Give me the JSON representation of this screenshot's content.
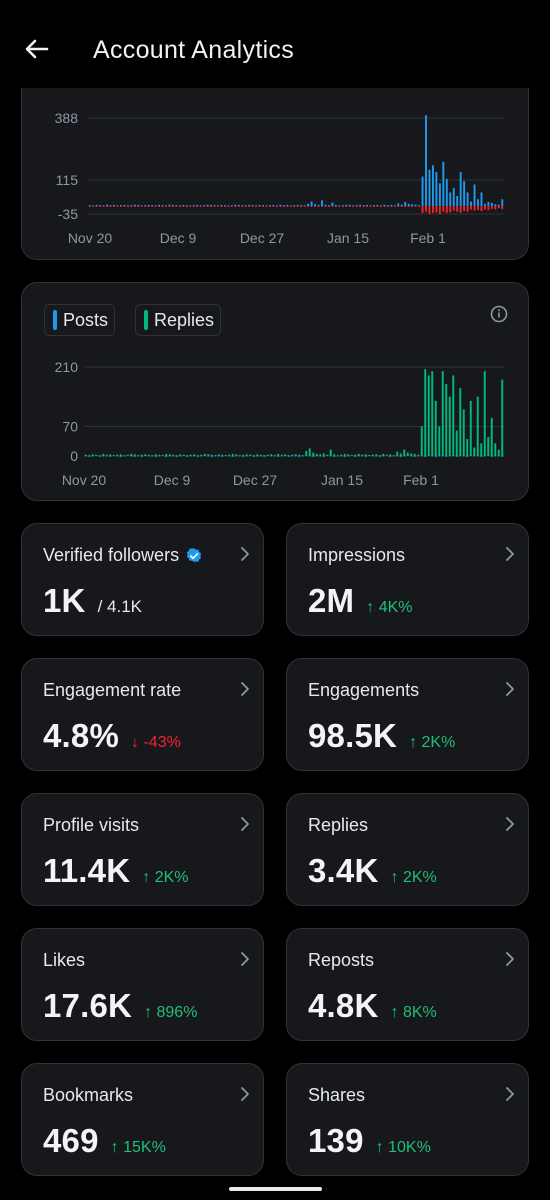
{
  "header": {
    "title": "Account Analytics",
    "back_icon": "arrow-left-icon"
  },
  "colors": {
    "posts": "#1d9bf0",
    "replies": "#00ba7c",
    "negative": "#f4212e",
    "up": "#1fbf78",
    "down": "#f4212e",
    "card_bg": "#16181c",
    "border": "#2f3336"
  },
  "chart_top": {
    "chart_data": {
      "type": "bar",
      "y_ticks": [
        "388",
        "115",
        "-35"
      ],
      "ylim": [
        -35,
        388
      ],
      "x_ticks": [
        "Nov 20",
        "Dec 9",
        "Dec 27",
        "Jan 15",
        "Feb 1"
      ],
      "series": [
        {
          "values": [
            4,
            3,
            5,
            4,
            3,
            6,
            4,
            5,
            3,
            4,
            5,
            3,
            4,
            6,
            5,
            3,
            4,
            5,
            4,
            3,
            5,
            4,
            3,
            6,
            5,
            4,
            3,
            5,
            4,
            3,
            4,
            5,
            3,
            4,
            6,
            5,
            4,
            3,
            5,
            4,
            3,
            4,
            6,
            5,
            3,
            4,
            5,
            4,
            3,
            5,
            4,
            3,
            4,
            5,
            3,
            6,
            4,
            5,
            3,
            4,
            5,
            4,
            3,
            10,
            20,
            8,
            5,
            25,
            6,
            4,
            15,
            5,
            3,
            4,
            6,
            5,
            3,
            4,
            6,
            4,
            5,
            3,
            4,
            5,
            3,
            6,
            4,
            5,
            3,
            12,
            6,
            18,
            10,
            8,
            6,
            4,
            130,
            400,
            160,
            180,
            150,
            100,
            195,
            120,
            60,
            80,
            45,
            150,
            110,
            60,
            20,
            95,
            30,
            60,
            10,
            18,
            14,
            8,
            6,
            30
          ]
        },
        {
          "values": [
            -2,
            -1,
            -2,
            -3,
            -1,
            -2,
            -1,
            -2,
            -3,
            -1,
            -2,
            -1,
            -2,
            -3,
            -1,
            -2,
            -1,
            -2,
            -3,
            -1,
            -2,
            -1,
            -2,
            -3,
            -1,
            -2,
            -1,
            -2,
            -3,
            -1,
            -2,
            -1,
            -2,
            -3,
            -1,
            -2,
            -1,
            -2,
            -3,
            -1,
            -2,
            -1,
            -2,
            -3,
            -1,
            -2,
            -1,
            -2,
            -3,
            -1,
            -2,
            -1,
            -2,
            -3,
            -1,
            -2,
            -1,
            -2,
            -3,
            -1,
            -2,
            -1,
            -2,
            -3,
            -1,
            -2,
            -3,
            -1,
            -2,
            -3,
            -1,
            -2,
            -1,
            -3,
            -2,
            -1,
            -2,
            -3,
            -1,
            -2,
            -1,
            -2,
            -3,
            -1,
            -2,
            -1,
            -2,
            -3,
            -1,
            -2,
            -3,
            -4,
            -3,
            -2,
            -3,
            -2,
            -30,
            -25,
            -35,
            -30,
            -28,
            -35,
            -25,
            -30,
            -28,
            -20,
            -25,
            -30,
            -22,
            -25,
            -15,
            -20,
            -18,
            -22,
            -15,
            -18,
            -12,
            -15,
            -10,
            -14
          ]
        }
      ]
    }
  },
  "chart_bottom": {
    "legend": [
      {
        "label": "Posts"
      },
      {
        "label": "Replies"
      }
    ],
    "info_icon": "info-icon",
    "chart_data": {
      "type": "bar",
      "y_ticks": [
        "210",
        "70",
        "0"
      ],
      "ylim": [
        0,
        210
      ],
      "x_ticks": [
        "Nov 20",
        "Dec 9",
        "Dec 27",
        "Jan 15",
        "Feb 1"
      ],
      "series": [
        {
          "name": "Posts",
          "values": [
            1,
            0,
            1,
            2,
            0,
            1,
            1,
            0,
            2,
            1,
            0,
            1,
            2,
            1,
            0,
            1,
            0,
            2,
            1,
            1,
            0,
            1,
            2,
            0,
            1,
            1,
            0,
            1,
            2,
            0,
            1,
            1,
            0,
            1,
            2,
            1,
            0,
            1,
            1,
            0,
            2,
            1,
            0,
            1,
            1,
            0,
            1,
            2,
            0,
            1,
            1,
            0,
            2,
            1,
            1,
            0,
            1,
            2,
            0,
            1,
            1,
            0,
            1,
            2,
            1,
            0,
            1,
            1,
            0,
            2,
            1,
            0,
            1,
            1,
            0,
            1,
            2,
            0,
            1,
            1,
            0,
            2,
            1,
            1,
            0,
            1,
            2,
            0,
            1,
            1,
            0,
            1,
            2,
            1,
            0,
            1,
            1,
            0,
            2,
            1,
            0,
            1,
            1,
            0,
            1,
            2,
            0,
            1,
            1,
            0,
            2,
            1,
            1,
            0,
            1,
            2,
            0,
            1,
            1,
            0
          ]
        },
        {
          "name": "Replies",
          "values": [
            3,
            2,
            4,
            3,
            2,
            5,
            3,
            4,
            2,
            3,
            4,
            2,
            3,
            5,
            4,
            2,
            3,
            4,
            3,
            2,
            4,
            3,
            2,
            5,
            4,
            3,
            2,
            4,
            3,
            2,
            3,
            4,
            2,
            3,
            5,
            4,
            3,
            2,
            4,
            3,
            2,
            3,
            5,
            4,
            2,
            3,
            4,
            3,
            2,
            4,
            3,
            2,
            3,
            4,
            2,
            5,
            3,
            4,
            2,
            3,
            4,
            3,
            2,
            12,
            18,
            8,
            5,
            4,
            6,
            3,
            15,
            4,
            2,
            3,
            5,
            4,
            2,
            3,
            5,
            3,
            4,
            2,
            3,
            4,
            2,
            5,
            3,
            4,
            2,
            10,
            6,
            15,
            8,
            6,
            5,
            3,
            70,
            205,
            190,
            200,
            130,
            70,
            200,
            170,
            140,
            190,
            60,
            160,
            110,
            40,
            130,
            20,
            140,
            30,
            200,
            45,
            90,
            30,
            15,
            180
          ]
        }
      ]
    }
  },
  "stats": [
    {
      "label": "Verified followers",
      "value": "1K",
      "sub": "/ 4.1K",
      "change": "",
      "dir": "",
      "verified": true
    },
    {
      "label": "Impressions",
      "value": "2M",
      "sub": "",
      "change": "↑ 4K%",
      "dir": "up"
    },
    {
      "label": "Engagement rate",
      "value": "4.8%",
      "sub": "",
      "change": "↓ -43%",
      "dir": "down"
    },
    {
      "label": "Engagements",
      "value": "98.5K",
      "sub": "",
      "change": "↑ 2K%",
      "dir": "up"
    },
    {
      "label": "Profile visits",
      "value": "11.4K",
      "sub": "",
      "change": "↑ 2K%",
      "dir": "up"
    },
    {
      "label": "Replies",
      "value": "3.4K",
      "sub": "",
      "change": "↑ 2K%",
      "dir": "up"
    },
    {
      "label": "Likes",
      "value": "17.6K",
      "sub": "",
      "change": "↑ 896%",
      "dir": "up"
    },
    {
      "label": "Reposts",
      "value": "4.8K",
      "sub": "",
      "change": "↑ 8K%",
      "dir": "up"
    },
    {
      "label": "Bookmarks",
      "value": "469",
      "sub": "",
      "change": "↑ 15K%",
      "dir": "up"
    },
    {
      "label": "Shares",
      "value": "139",
      "sub": "",
      "change": "↑ 10K%",
      "dir": "up"
    }
  ]
}
